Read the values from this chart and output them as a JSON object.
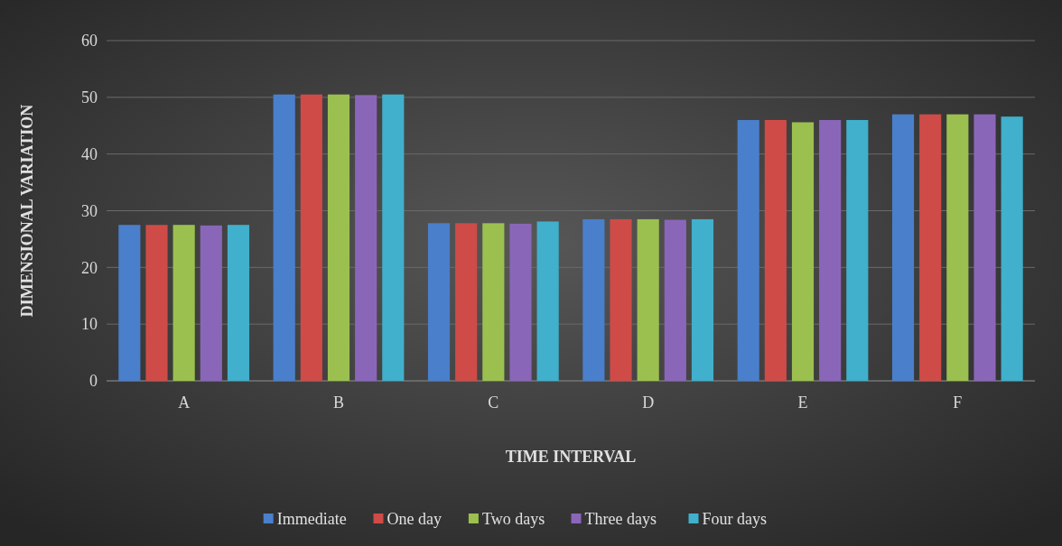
{
  "chart_data": {
    "type": "bar",
    "xlabel": "TIME INTERVAL",
    "ylabel": "DIMENSIONAL VARIATION",
    "categories": [
      "A",
      "B",
      "C",
      "D",
      "E",
      "F"
    ],
    "series": [
      {
        "name": "Immediate",
        "color": "#4a7fcb",
        "values": [
          27.5,
          50.5,
          27.8,
          28.5,
          46.0,
          47.0
        ]
      },
      {
        "name": "One day",
        "color": "#cf4b47",
        "values": [
          27.5,
          50.5,
          27.8,
          28.5,
          46.0,
          47.0
        ]
      },
      {
        "name": "Two days",
        "color": "#9bc04f",
        "values": [
          27.5,
          50.5,
          27.8,
          28.5,
          45.6,
          47.0
        ]
      },
      {
        "name": "Three days",
        "color": "#8a66b8",
        "values": [
          27.4,
          50.4,
          27.7,
          28.4,
          46.0,
          47.0
        ]
      },
      {
        "name": "Four days",
        "color": "#40b0cc",
        "values": [
          27.5,
          50.5,
          28.1,
          28.5,
          46.0,
          46.6
        ]
      }
    ],
    "ylim": [
      0,
      60
    ],
    "yticks": [
      0,
      10,
      20,
      30,
      40,
      50,
      60
    ],
    "grid": "y",
    "legend": "bottom"
  }
}
